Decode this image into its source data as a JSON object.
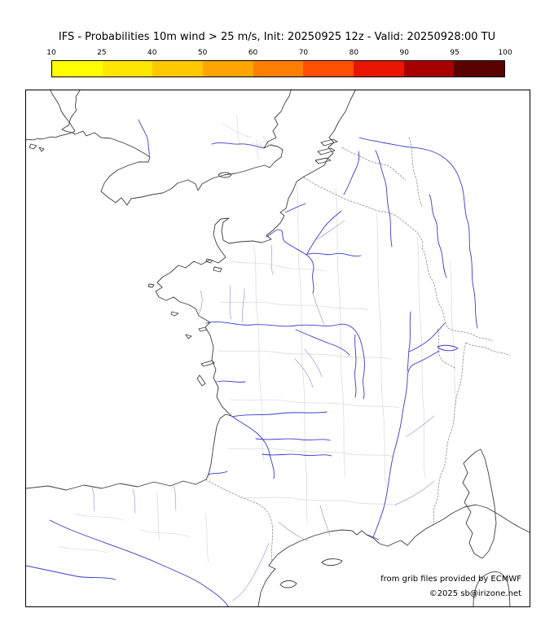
{
  "title": "IFS - Probabilities 10m wind > 25 m/s, Init: 20250925 12z - Valid: 20250928:00 TU",
  "colorbar": {
    "ticks": [
      "10",
      "25",
      "40",
      "50",
      "60",
      "70",
      "80",
      "90",
      "95",
      "100"
    ],
    "segments": [
      "#ffff00",
      "#ffe600",
      "#ffc800",
      "#ffa500",
      "#ff7f00",
      "#ff4f00",
      "#e81500",
      "#a80000",
      "#5a0000"
    ]
  },
  "credits": {
    "line1": "from grib files provided by ECMWF",
    "line2": "©2025 sb@irizone.net"
  },
  "colors": {
    "background": "#ffffff",
    "text": "#000000",
    "frame": "#000000",
    "coastline": "#3d3d3d",
    "border_country": "#8a8a8a",
    "border_department": "#d8d8d8",
    "river_major": "#3a3ad0",
    "river_minor": "#9a9ae0"
  },
  "chart_data": {
    "type": "heatmap",
    "title": "IFS - Probabilities 10m wind > 25 m/s",
    "init_time": "20250925 12z",
    "valid_time": "20250928:00 TU",
    "colorbar_ticks": [
      10,
      25,
      40,
      50,
      60,
      70,
      80,
      90,
      95,
      100
    ],
    "colorbar_unit": "%",
    "region": "France / Western Europe map domain",
    "note": "No shaded probability areas are visible inside the map domain at this valid time; only base map (coastlines, borders, rivers) is drawn."
  }
}
